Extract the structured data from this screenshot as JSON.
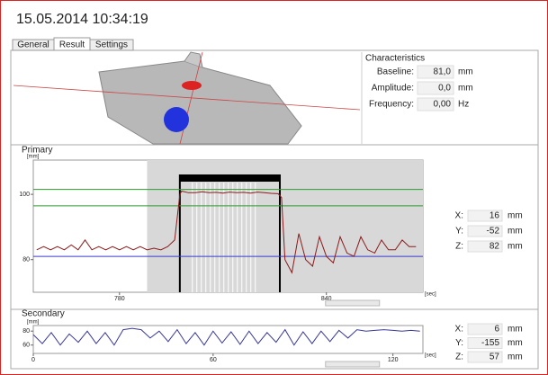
{
  "header": {
    "title": "15.05.2014 10:34:19"
  },
  "tabs": [
    "General",
    "Result",
    "Settings"
  ],
  "active_tab": 1,
  "characteristics": {
    "title": "Characteristics",
    "rows": [
      {
        "label": "Baseline:",
        "value": "81,0",
        "unit": "mm"
      },
      {
        "label": "Amplitude:",
        "value": "0,0",
        "unit": "mm"
      },
      {
        "label": "Frequency:",
        "value": "0,00",
        "unit": "Hz"
      }
    ]
  },
  "primary": {
    "title": "Primary",
    "chart_data": {
      "type": "line",
      "y_label": "[mm]",
      "x_label": "[sec]",
      "x": [
        756,
        758,
        760,
        762,
        764,
        766,
        768,
        770,
        772,
        774,
        776,
        778,
        780,
        782,
        784,
        786,
        788,
        790,
        792,
        794,
        796,
        797.5,
        798,
        800,
        802,
        804,
        806,
        808,
        810,
        812,
        814,
        816,
        818,
        820,
        822,
        824,
        826,
        827,
        828,
        830,
        832,
        834,
        836,
        838,
        840,
        842,
        844,
        846,
        848,
        850,
        852,
        854,
        856,
        858,
        860,
        862,
        864,
        866
      ],
      "series": [
        {
          "color": "#8b1a1a",
          "values": [
            83,
            84,
            83,
            84,
            83,
            84.5,
            83,
            86,
            83,
            84,
            83,
            84,
            83,
            84,
            83,
            84,
            83,
            83.5,
            83,
            84,
            86,
            100,
            101,
            100.5,
            100.5,
            100.8,
            100.5,
            100.6,
            100.4,
            100.7,
            100.5,
            100.6,
            100.4,
            100.7,
            100.5,
            100.3,
            100.2,
            99,
            80,
            76,
            88,
            80,
            78,
            87,
            81,
            79,
            87,
            82,
            81,
            87,
            83,
            82,
            86,
            83,
            83,
            86,
            84,
            84
          ]
        }
      ],
      "xlim": [
        755,
        868
      ],
      "ylim": [
        70,
        110.5
      ],
      "xticks": [
        780,
        840
      ],
      "yticks": [
        80,
        100
      ],
      "reference_lines": [
        {
          "value": 101.5,
          "color": "#2e9a2e"
        },
        {
          "value": 96.5,
          "color": "#2e9a2e"
        },
        {
          "value": 81,
          "color": "#3a3ad0"
        }
      ],
      "window": [
        788,
        868
      ],
      "pulse": [
        797.5,
        826.5
      ]
    },
    "readouts": [
      {
        "label": "X:",
        "value": 16,
        "unit": "mm"
      },
      {
        "label": "Y:",
        "value": -52,
        "unit": "mm"
      },
      {
        "label": "Z:",
        "value": 82,
        "unit": "mm"
      }
    ]
  },
  "secondary": {
    "title": "Secondary",
    "chart_data": {
      "type": "line",
      "y_label": "[mm]",
      "x_label": "[sec]",
      "x": [
        0,
        3,
        6,
        9,
        12,
        15,
        18,
        21,
        24,
        27,
        30,
        33,
        36,
        39,
        42,
        45,
        48,
        51,
        54,
        57,
        60,
        63,
        66,
        69,
        72,
        75,
        78,
        81,
        84,
        87,
        90,
        93,
        96,
        99,
        102,
        105,
        108,
        111,
        114,
        117,
        120,
        123,
        126,
        129
      ],
      "series": [
        {
          "color": "#3a3a9a",
          "values": [
            75,
            62,
            78,
            60,
            76,
            64,
            80,
            62,
            78,
            60,
            82,
            84,
            82,
            70,
            80,
            65,
            82,
            62,
            78,
            60,
            80,
            63,
            79,
            61,
            80,
            62,
            78,
            64,
            82,
            60,
            79,
            62,
            80,
            65,
            81,
            70,
            82,
            80,
            81,
            82,
            81,
            80,
            81,
            80
          ]
        }
      ],
      "xlim": [
        0,
        130
      ],
      "ylim": [
        48,
        88
      ],
      "xticks": [
        0,
        60,
        120
      ],
      "yticks": [
        60,
        80
      ]
    },
    "readouts": [
      {
        "label": "X:",
        "value": 6,
        "unit": "mm"
      },
      {
        "label": "Y:",
        "value": -155,
        "unit": "mm"
      },
      {
        "label": "Z:",
        "value": 57,
        "unit": "mm"
      }
    ]
  }
}
